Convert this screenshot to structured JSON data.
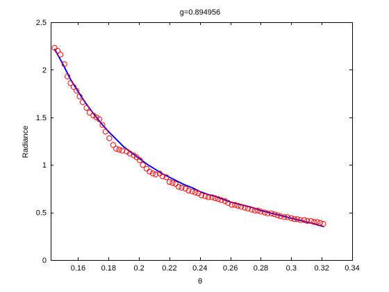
{
  "chart_data": {
    "type": "scatter",
    "title": "g=0.894956",
    "xlabel": "θ",
    "ylabel": "Radiance",
    "xlim": [
      0.142,
      0.34
    ],
    "ylim": [
      0,
      2.5
    ],
    "grid": false,
    "xticks": [
      0.16,
      0.18,
      0.2,
      0.22,
      0.24,
      0.26,
      0.28,
      0.3,
      0.32,
      0.34
    ],
    "xtick_labels": [
      "0.16",
      "0.18",
      "0.2",
      "0.22",
      "0.24",
      "0.26",
      "0.28",
      "0.3",
      "0.32",
      "0.34"
    ],
    "yticks": [
      0,
      0.5,
      1,
      1.5,
      2,
      2.5
    ],
    "ytick_labels": [
      "0",
      "0.5",
      "1",
      "1.5",
      "2",
      "2.5"
    ],
    "colors": {
      "markers": "#ff0000",
      "fit": "#0000ff",
      "axes": "#000000"
    },
    "series": [
      {
        "kind": "markers",
        "marker": "circle",
        "x": [
          0.1445,
          0.1465,
          0.1485,
          0.151,
          0.153,
          0.155,
          0.157,
          0.159,
          0.161,
          0.163,
          0.1655,
          0.1675,
          0.17,
          0.172,
          0.174,
          0.176,
          0.178,
          0.1805,
          0.183,
          0.185,
          0.187,
          0.189,
          0.192,
          0.194,
          0.1965,
          0.1985,
          0.2005,
          0.2025,
          0.205,
          0.207,
          0.209,
          0.211,
          0.2135,
          0.2155,
          0.218,
          0.22,
          0.222,
          0.224,
          0.226,
          0.228,
          0.2305,
          0.2325,
          0.235,
          0.237,
          0.239,
          0.241,
          0.2435,
          0.2455,
          0.248,
          0.25,
          0.252,
          0.254,
          0.2565,
          0.2585,
          0.261,
          0.263,
          0.265,
          0.267,
          0.2695,
          0.2715,
          0.274,
          0.276,
          0.278,
          0.28,
          0.2825,
          0.2845,
          0.287,
          0.289,
          0.291,
          0.293,
          0.2955,
          0.2975,
          0.3,
          0.302,
          0.304,
          0.306,
          0.3085,
          0.3105,
          0.313,
          0.315,
          0.317,
          0.319,
          0.321
        ],
        "y": [
          2.23,
          2.2,
          2.16,
          2.06,
          1.93,
          1.86,
          1.82,
          1.78,
          1.72,
          1.66,
          1.6,
          1.55,
          1.52,
          1.5,
          1.48,
          1.42,
          1.35,
          1.28,
          1.21,
          1.17,
          1.16,
          1.15,
          1.14,
          1.12,
          1.1,
          1.08,
          1.05,
          1.0,
          0.96,
          0.93,
          0.91,
          0.9,
          0.91,
          0.88,
          0.87,
          0.82,
          0.81,
          0.8,
          0.77,
          0.76,
          0.75,
          0.73,
          0.72,
          0.71,
          0.7,
          0.68,
          0.67,
          0.66,
          0.66,
          0.65,
          0.64,
          0.63,
          0.62,
          0.6,
          0.58,
          0.58,
          0.57,
          0.56,
          0.55,
          0.54,
          0.53,
          0.52,
          0.52,
          0.51,
          0.5,
          0.49,
          0.49,
          0.48,
          0.47,
          0.46,
          0.45,
          0.45,
          0.44,
          0.43,
          0.43,
          0.42,
          0.42,
          0.41,
          0.41,
          0.4,
          0.4,
          0.39,
          0.38
        ]
      },
      {
        "kind": "line",
        "x": [
          0.1445,
          0.15,
          0.155,
          0.16,
          0.165,
          0.17,
          0.175,
          0.18,
          0.185,
          0.19,
          0.195,
          0.2,
          0.205,
          0.21,
          0.215,
          0.22,
          0.225,
          0.23,
          0.235,
          0.24,
          0.245,
          0.25,
          0.255,
          0.26,
          0.265,
          0.27,
          0.275,
          0.28,
          0.285,
          0.29,
          0.295,
          0.3,
          0.305,
          0.31,
          0.315,
          0.3215
        ],
        "y": [
          2.22,
          2.06,
          1.9,
          1.77,
          1.65,
          1.54,
          1.44,
          1.35,
          1.27,
          1.19,
          1.13,
          1.07,
          1.01,
          0.96,
          0.91,
          0.87,
          0.83,
          0.79,
          0.76,
          0.72,
          0.69,
          0.67,
          0.64,
          0.61,
          0.59,
          0.57,
          0.55,
          0.52,
          0.5,
          0.48,
          0.46,
          0.44,
          0.42,
          0.4,
          0.38,
          0.35
        ]
      }
    ]
  }
}
